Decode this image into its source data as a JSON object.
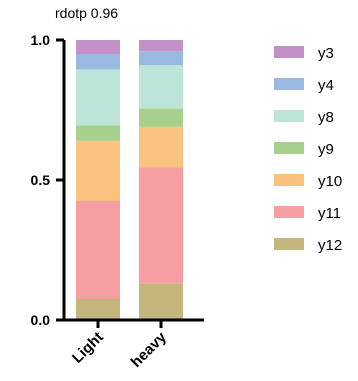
{
  "chart_data": {
    "type": "bar",
    "stacked": true,
    "title": "rdotp 0.96",
    "categories": [
      "Light",
      "heavy"
    ],
    "ylim": [
      0,
      1.0
    ],
    "yticks": [
      "0.0",
      "0.5",
      "1.0"
    ],
    "ytick_values": [
      0,
      0.5,
      1.0
    ],
    "grid": false,
    "legend_position": "right",
    "series": [
      {
        "name": "y12",
        "color": "#c4b57a",
        "values": [
          0.075,
          0.13
        ]
      },
      {
        "name": "y11",
        "color": "#f69fa2",
        "values": [
          0.35,
          0.415
        ]
      },
      {
        "name": "y10",
        "color": "#f9c27e",
        "values": [
          0.215,
          0.145
        ]
      },
      {
        "name": "y9",
        "color": "#a8d08d",
        "values": [
          0.055,
          0.065
        ]
      },
      {
        "name": "y8",
        "color": "#bce4d8",
        "values": [
          0.2,
          0.155
        ]
      },
      {
        "name": "y4",
        "color": "#9ab9e2",
        "values": [
          0.055,
          0.05
        ]
      },
      {
        "name": "y3",
        "color": "#c490c8",
        "values": [
          0.05,
          0.04
        ]
      }
    ],
    "legend_order": [
      "y3",
      "y4",
      "y8",
      "y9",
      "y10",
      "y11",
      "y12"
    ]
  }
}
